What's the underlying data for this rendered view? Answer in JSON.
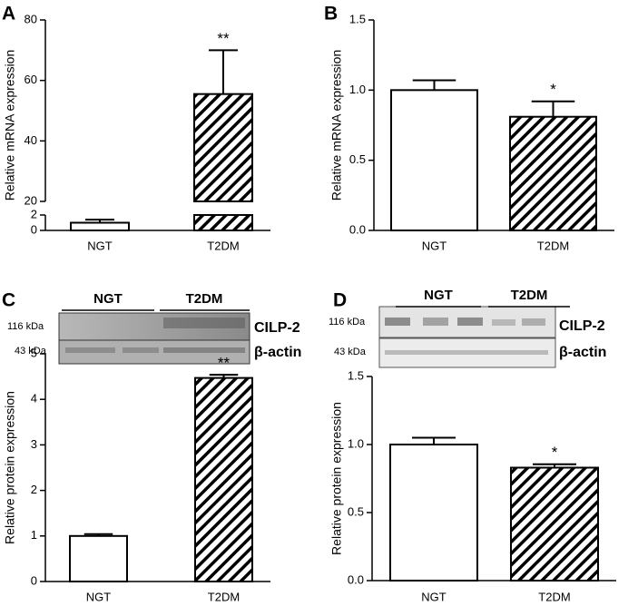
{
  "chart_data": [
    {
      "type": "bar",
      "panel": "A",
      "ylabel": "Relative mRNA expression",
      "categories": [
        "NGT",
        "T2DM"
      ],
      "values": [
        1.0,
        55.5
      ],
      "errors": [
        0.4,
        14.5
      ],
      "hatch": [
        false,
        true
      ],
      "significance": "**",
      "ylim": [
        0,
        80
      ],
      "axis_break": [
        2,
        20
      ],
      "yticks": [
        0,
        2,
        20,
        40,
        60,
        80
      ]
    },
    {
      "type": "bar",
      "panel": "B",
      "ylabel": "Relative mRNA expression",
      "categories": [
        "NGT",
        "T2DM"
      ],
      "values": [
        1.0,
        0.81
      ],
      "errors": [
        0.07,
        0.11
      ],
      "hatch": [
        false,
        true
      ],
      "significance": "*",
      "ylim": [
        0,
        1.5
      ],
      "yticks": [
        {
          "value": 0,
          "label": "0.0"
        },
        {
          "value": 0.5,
          "label": "0.5"
        },
        {
          "value": 1,
          "label": "1.0"
        },
        {
          "value": 1.5,
          "label": "1.5"
        }
      ]
    },
    {
      "type": "bar",
      "panel": "C",
      "ylabel": "Relative protein expression",
      "categories": [
        "NGT",
        "T2DM"
      ],
      "values": [
        1.0,
        4.47
      ],
      "errors": [
        0.04,
        0.07
      ],
      "hatch": [
        false,
        true
      ],
      "significance": "**",
      "ylim": [
        0,
        5
      ],
      "yticks": [
        0,
        1,
        2,
        3,
        4,
        5
      ],
      "blot": {
        "groups": [
          "NGT",
          "T2DM"
        ],
        "markers": [
          "116 kDa",
          "43 kDa"
        ],
        "bands": [
          "CILP-2",
          "β-actin"
        ]
      }
    },
    {
      "type": "bar",
      "panel": "D",
      "ylabel": "Relative protein expression",
      "categories": [
        "NGT",
        "T2DM"
      ],
      "values": [
        1.0,
        0.83
      ],
      "errors": [
        0.05,
        0.025
      ],
      "hatch": [
        false,
        true
      ],
      "significance": "*",
      "ylim": [
        0,
        1.5
      ],
      "yticks": [
        {
          "value": 0,
          "label": "0.0"
        },
        {
          "value": 0.5,
          "label": "0.5"
        },
        {
          "value": 1,
          "label": "1.0"
        },
        {
          "value": 1.5,
          "label": "1.5"
        }
      ],
      "blot": {
        "groups": [
          "NGT",
          "T2DM"
        ],
        "markers": [
          "116 kDa",
          "43 kDa"
        ],
        "bands": [
          "CILP-2",
          "β-actin"
        ]
      }
    }
  ]
}
